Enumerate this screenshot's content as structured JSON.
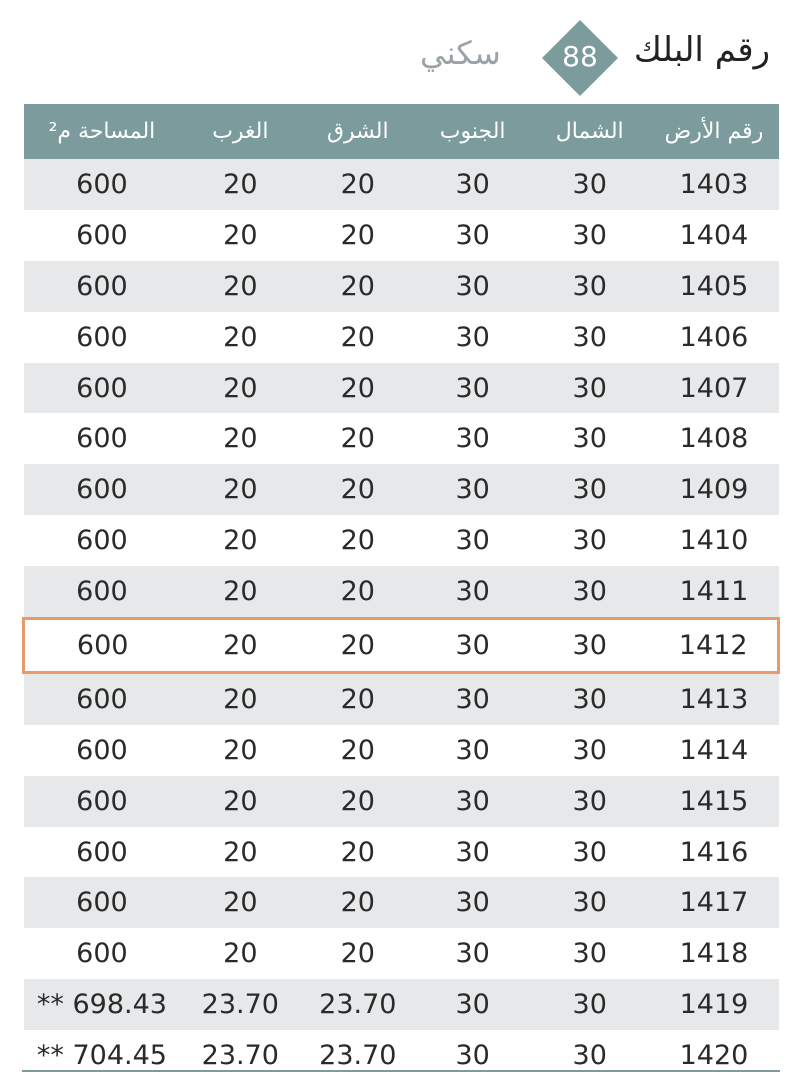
{
  "header": {
    "title": "رقم البلك",
    "block_number": "88",
    "block_type": "سكني",
    "accent": "#7b9b9d",
    "highlight": "#e99a6a"
  },
  "table": {
    "columns": [
      "رقم الأرض",
      "الشمال",
      "الجنوب",
      "الشرق",
      "الغرب",
      "المساحة م²"
    ],
    "highlighted_row": "1412",
    "rows": [
      [
        "1403",
        "30",
        "30",
        "20",
        "20",
        "600"
      ],
      [
        "1404",
        "30",
        "30",
        "20",
        "20",
        "600"
      ],
      [
        "1405",
        "30",
        "30",
        "20",
        "20",
        "600"
      ],
      [
        "1406",
        "30",
        "30",
        "20",
        "20",
        "600"
      ],
      [
        "1407",
        "30",
        "30",
        "20",
        "20",
        "600"
      ],
      [
        "1408",
        "30",
        "30",
        "20",
        "20",
        "600"
      ],
      [
        "1409",
        "30",
        "30",
        "20",
        "20",
        "600"
      ],
      [
        "1410",
        "30",
        "30",
        "20",
        "20",
        "600"
      ],
      [
        "1411",
        "30",
        "30",
        "20",
        "20",
        "600"
      ],
      [
        "1412",
        "30",
        "30",
        "20",
        "20",
        "600"
      ],
      [
        "1413",
        "30",
        "30",
        "20",
        "20",
        "600"
      ],
      [
        "1414",
        "30",
        "30",
        "20",
        "20",
        "600"
      ],
      [
        "1415",
        "30",
        "30",
        "20",
        "20",
        "600"
      ],
      [
        "1416",
        "30",
        "30",
        "20",
        "20",
        "600"
      ],
      [
        "1417",
        "30",
        "30",
        "20",
        "20",
        "600"
      ],
      [
        "1418",
        "30",
        "30",
        "20",
        "20",
        "600"
      ],
      [
        "1419",
        "30",
        "30",
        "23.70",
        "23.70",
        "** 698.43"
      ],
      [
        "1420",
        "30",
        "30",
        "23.70",
        "23.70",
        "** 704.45"
      ]
    ]
  }
}
